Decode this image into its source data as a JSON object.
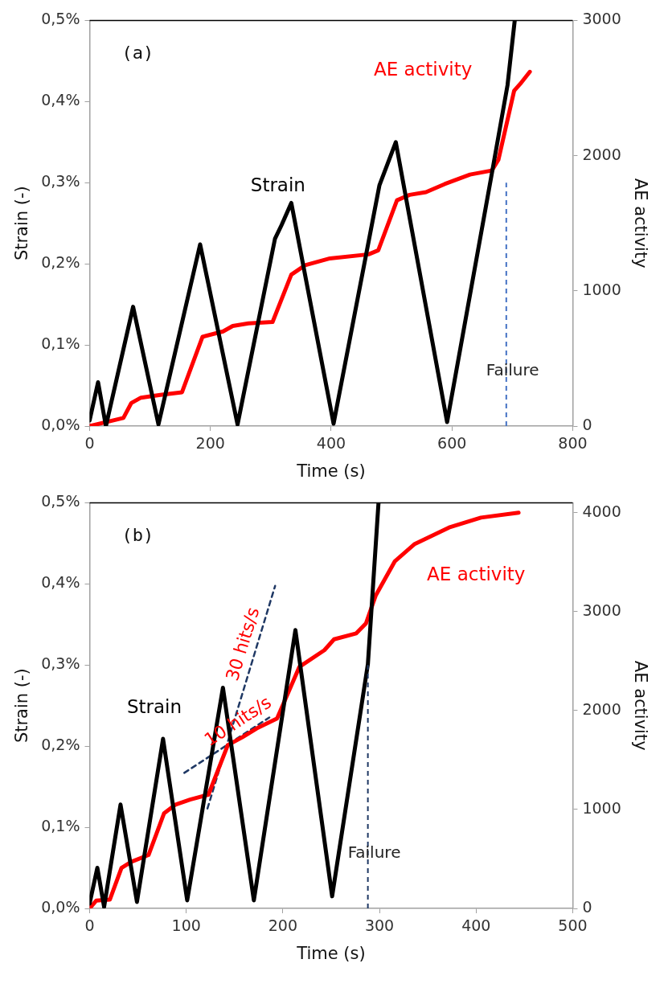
{
  "chart_data": [
    {
      "type": "line",
      "xlabel": "Time (s)",
      "ylabel": "Strain (-)",
      "y2label": "AE activity",
      "xlim": [
        0,
        800
      ],
      "xticks": [
        0,
        200,
        400,
        600,
        800
      ],
      "ylim": [
        0,
        0.5
      ],
      "yticks": [
        {
          "value": 0,
          "label": "0,0%"
        },
        {
          "value": 0.1,
          "label": "0,1%"
        },
        {
          "value": 0.2,
          "label": "0,2%"
        },
        {
          "value": 0.3,
          "label": "0,3%"
        },
        {
          "value": 0.4,
          "label": "0,4%"
        },
        {
          "value": 0.5,
          "label": "0,5%"
        }
      ],
      "y2lim": [
        0,
        3000
      ],
      "y2ticks": [
        0,
        1000,
        2000,
        3000
      ],
      "grid": false,
      "legend": false,
      "marker": "none",
      "series": [
        {
          "name": "Strain",
          "color": "#000000",
          "x": [
            0,
            14,
            27,
            72,
            114,
            183,
            245,
            307,
            318,
            334,
            404,
            480,
            507,
            592,
            666,
            692,
            704
          ],
          "values": [
            0.007,
            0.054,
            0.0,
            0.147,
            0.002,
            0.224,
            0.002,
            0.231,
            0.248,
            0.275,
            0.003,
            0.297,
            0.35,
            0.005,
            0.311,
            0.42,
            0.5
          ]
        },
        {
          "name": "AE activity",
          "color": "#ff0000",
          "axis": "y2",
          "x": [
            0,
            56,
            69,
            85,
            117,
            153,
            187,
            221,
            237,
            263,
            303,
            334,
            357,
            398,
            462,
            478,
            509,
            530,
            557,
            588,
            630,
            666,
            677,
            703,
            713,
            729
          ],
          "values": [
            0,
            60,
            170,
            210,
            230,
            250,
            660,
            700,
            740,
            760,
            770,
            1120,
            1190,
            1240,
            1270,
            1300,
            1670,
            1710,
            1730,
            1790,
            1860,
            1890,
            1970,
            2480,
            2530,
            2620
          ]
        }
      ],
      "ref_lines": [
        {
          "axis": "x",
          "value": 690,
          "label": "Failure",
          "color": "#4472c4",
          "line_style": "dashed"
        }
      ],
      "annotations": [
        "(a)"
      ]
    },
    {
      "type": "line",
      "xlabel": "Time (s)",
      "ylabel": "Strain (-)",
      "y2label": "AE activity",
      "xlim": [
        0,
        500
      ],
      "xticks": [
        0,
        100,
        200,
        300,
        400,
        500
      ],
      "ylim": [
        0,
        0.5
      ],
      "yticks": [
        {
          "value": 0,
          "label": "0,0%"
        },
        {
          "value": 0.1,
          "label": "0,1%"
        },
        {
          "value": 0.2,
          "label": "0,2%"
        },
        {
          "value": 0.3,
          "label": "0,3%"
        },
        {
          "value": 0.4,
          "label": "0,4%"
        },
        {
          "value": 0.5,
          "label": "0,5%"
        }
      ],
      "y2lim": [
        0,
        4100
      ],
      "y2ticks": [
        0,
        1000,
        2000,
        3000,
        4000
      ],
      "grid": false,
      "legend": false,
      "marker": "none",
      "series": [
        {
          "name": "Strain",
          "color": "#000000",
          "x": [
            0,
            8,
            15,
            32,
            49,
            76,
            101,
            138,
            170,
            213,
            251,
            288,
            299
          ],
          "values": [
            0.006,
            0.05,
            0.002,
            0.128,
            0.008,
            0.209,
            0.01,
            0.272,
            0.01,
            0.343,
            0.015,
            0.301,
            0.5
          ]
        },
        {
          "name": "AE activity",
          "color": "#ff0000",
          "axis": "y2",
          "x": [
            0,
            7,
            21,
            33,
            43,
            61,
            77,
            89,
            104,
            123,
            143,
            158,
            173,
            194,
            217,
            243,
            253,
            276,
            286,
            296,
            316,
            336,
            372,
            405,
            444
          ],
          "values": [
            0,
            80,
            90,
            410,
            470,
            540,
            960,
            1050,
            1100,
            1150,
            1650,
            1730,
            1820,
            1920,
            2440,
            2610,
            2720,
            2780,
            2880,
            3160,
            3510,
            3680,
            3850,
            3950,
            4000
          ]
        },
        {
          "color": "#1f3864",
          "axis": "y2",
          "line_style": "dashed",
          "x": [
            122,
            192
          ],
          "values": [
            1010,
            3260
          ]
        },
        {
          "color": "#1f3864",
          "axis": "y2",
          "line_style": "dashed",
          "x": [
            98,
            186
          ],
          "values": [
            1370,
            1930
          ]
        }
      ],
      "ref_lines": [
        {
          "axis": "x",
          "value": 288,
          "label": "Failure",
          "color": "#1f3864",
          "line_style": "dashed"
        }
      ],
      "annotations": [
        "(b)",
        "30 hits/s",
        "10 hits/s"
      ]
    }
  ]
}
